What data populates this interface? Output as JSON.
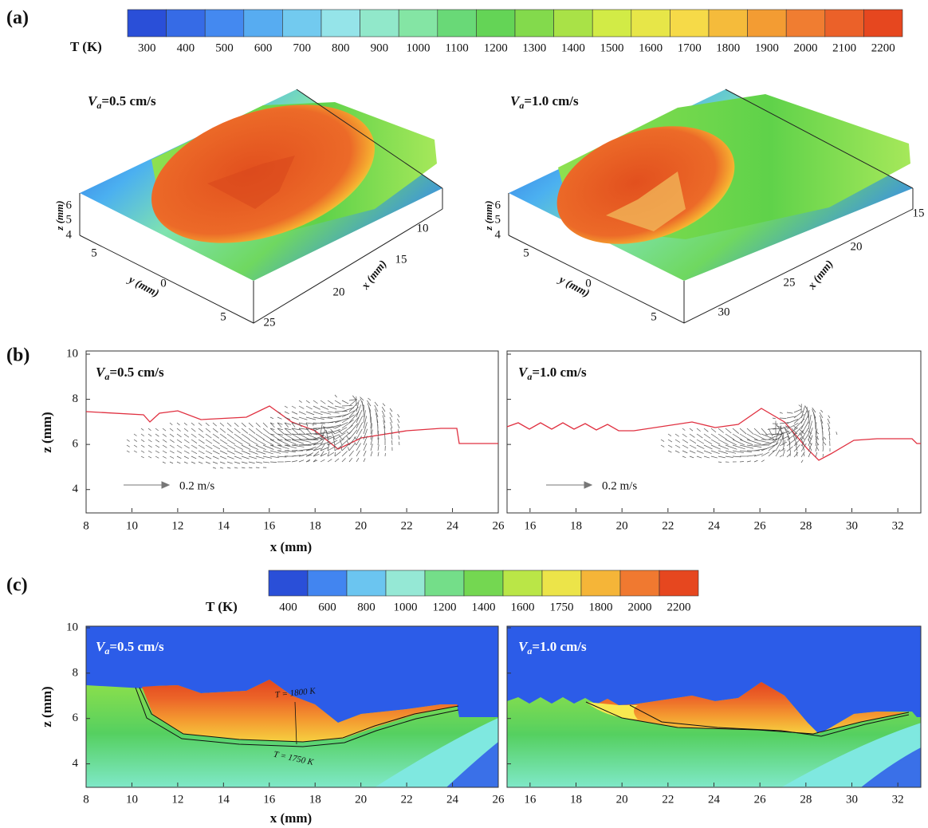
{
  "figure": {
    "panel_a": {
      "label": "(a)",
      "colorbar": {
        "title": "T (K)",
        "ticks": [
          300,
          400,
          500,
          600,
          700,
          800,
          900,
          1000,
          1100,
          1200,
          1300,
          1400,
          1500,
          1600,
          1700,
          1800,
          1900,
          2000,
          2100,
          2200
        ]
      },
      "plots": [
        {
          "title": {
            "symbol": "V",
            "subscript": "a",
            "text": "=0.5 cm/s"
          },
          "z_label": "z (mm)",
          "z_ticks": [
            4,
            5,
            6
          ],
          "y_label": "y (mm)",
          "y_ticks": [
            5,
            0,
            5
          ],
          "x_label": "x (mm)",
          "x_ticks": [
            10,
            15,
            20,
            25
          ]
        },
        {
          "title": {
            "symbol": "V",
            "subscript": "a",
            "text": "=1.0 cm/s"
          },
          "z_label": "z (mm)",
          "z_ticks": [
            4,
            5,
            6
          ],
          "y_label": "y (mm)",
          "y_ticks": [
            5,
            0,
            5
          ],
          "x_label": "x (mm)",
          "x_ticks": [
            15,
            20,
            25,
            30
          ]
        }
      ]
    },
    "panel_b": {
      "label": "(b)",
      "x_label": "x (mm)",
      "y_label": "z (mm)",
      "ylim": [
        3,
        10
      ],
      "yticks": [
        4,
        6,
        8,
        10
      ],
      "plots": [
        {
          "title": {
            "symbol": "V",
            "subscript": "a",
            "text": "=0.5 cm/s"
          },
          "xlim": [
            8,
            26
          ],
          "xticks": [
            8,
            10,
            12,
            14,
            16,
            18,
            20,
            22,
            24,
            26
          ],
          "scale_label": "0.2 m/s"
        },
        {
          "title": {
            "symbol": "V",
            "subscript": "a",
            "text": "=1.0 cm/s"
          },
          "xlim": [
            15,
            33
          ],
          "xticks": [
            16,
            18,
            20,
            22,
            24,
            26,
            28,
            30,
            32
          ],
          "scale_label": "0.2 m/s"
        }
      ]
    },
    "panel_c": {
      "label": "(c)",
      "x_label": "x (mm)",
      "y_label": "z (mm)",
      "ylim": [
        3,
        10
      ],
      "yticks": [
        4,
        6,
        8,
        10
      ],
      "colorbar": {
        "title": "T (K)",
        "ticks": [
          400,
          600,
          800,
          1000,
          1200,
          1400,
          1600,
          1750,
          1800,
          2000,
          2200
        ]
      },
      "isotherm_labels": [
        "T = 1800 K",
        "T = 1750 K"
      ],
      "plots": [
        {
          "title": {
            "symbol": "V",
            "subscript": "a",
            "text": "=0.5 cm/s"
          },
          "xlim": [
            8,
            26
          ],
          "xticks": [
            8,
            10,
            12,
            14,
            16,
            18,
            20,
            22,
            24,
            26
          ]
        },
        {
          "title": {
            "symbol": "V",
            "subscript": "a",
            "text": "=1.0 cm/s"
          },
          "xlim": [
            15,
            33
          ],
          "xticks": [
            16,
            18,
            20,
            22,
            24,
            26,
            28,
            30,
            32
          ]
        }
      ]
    }
  }
}
